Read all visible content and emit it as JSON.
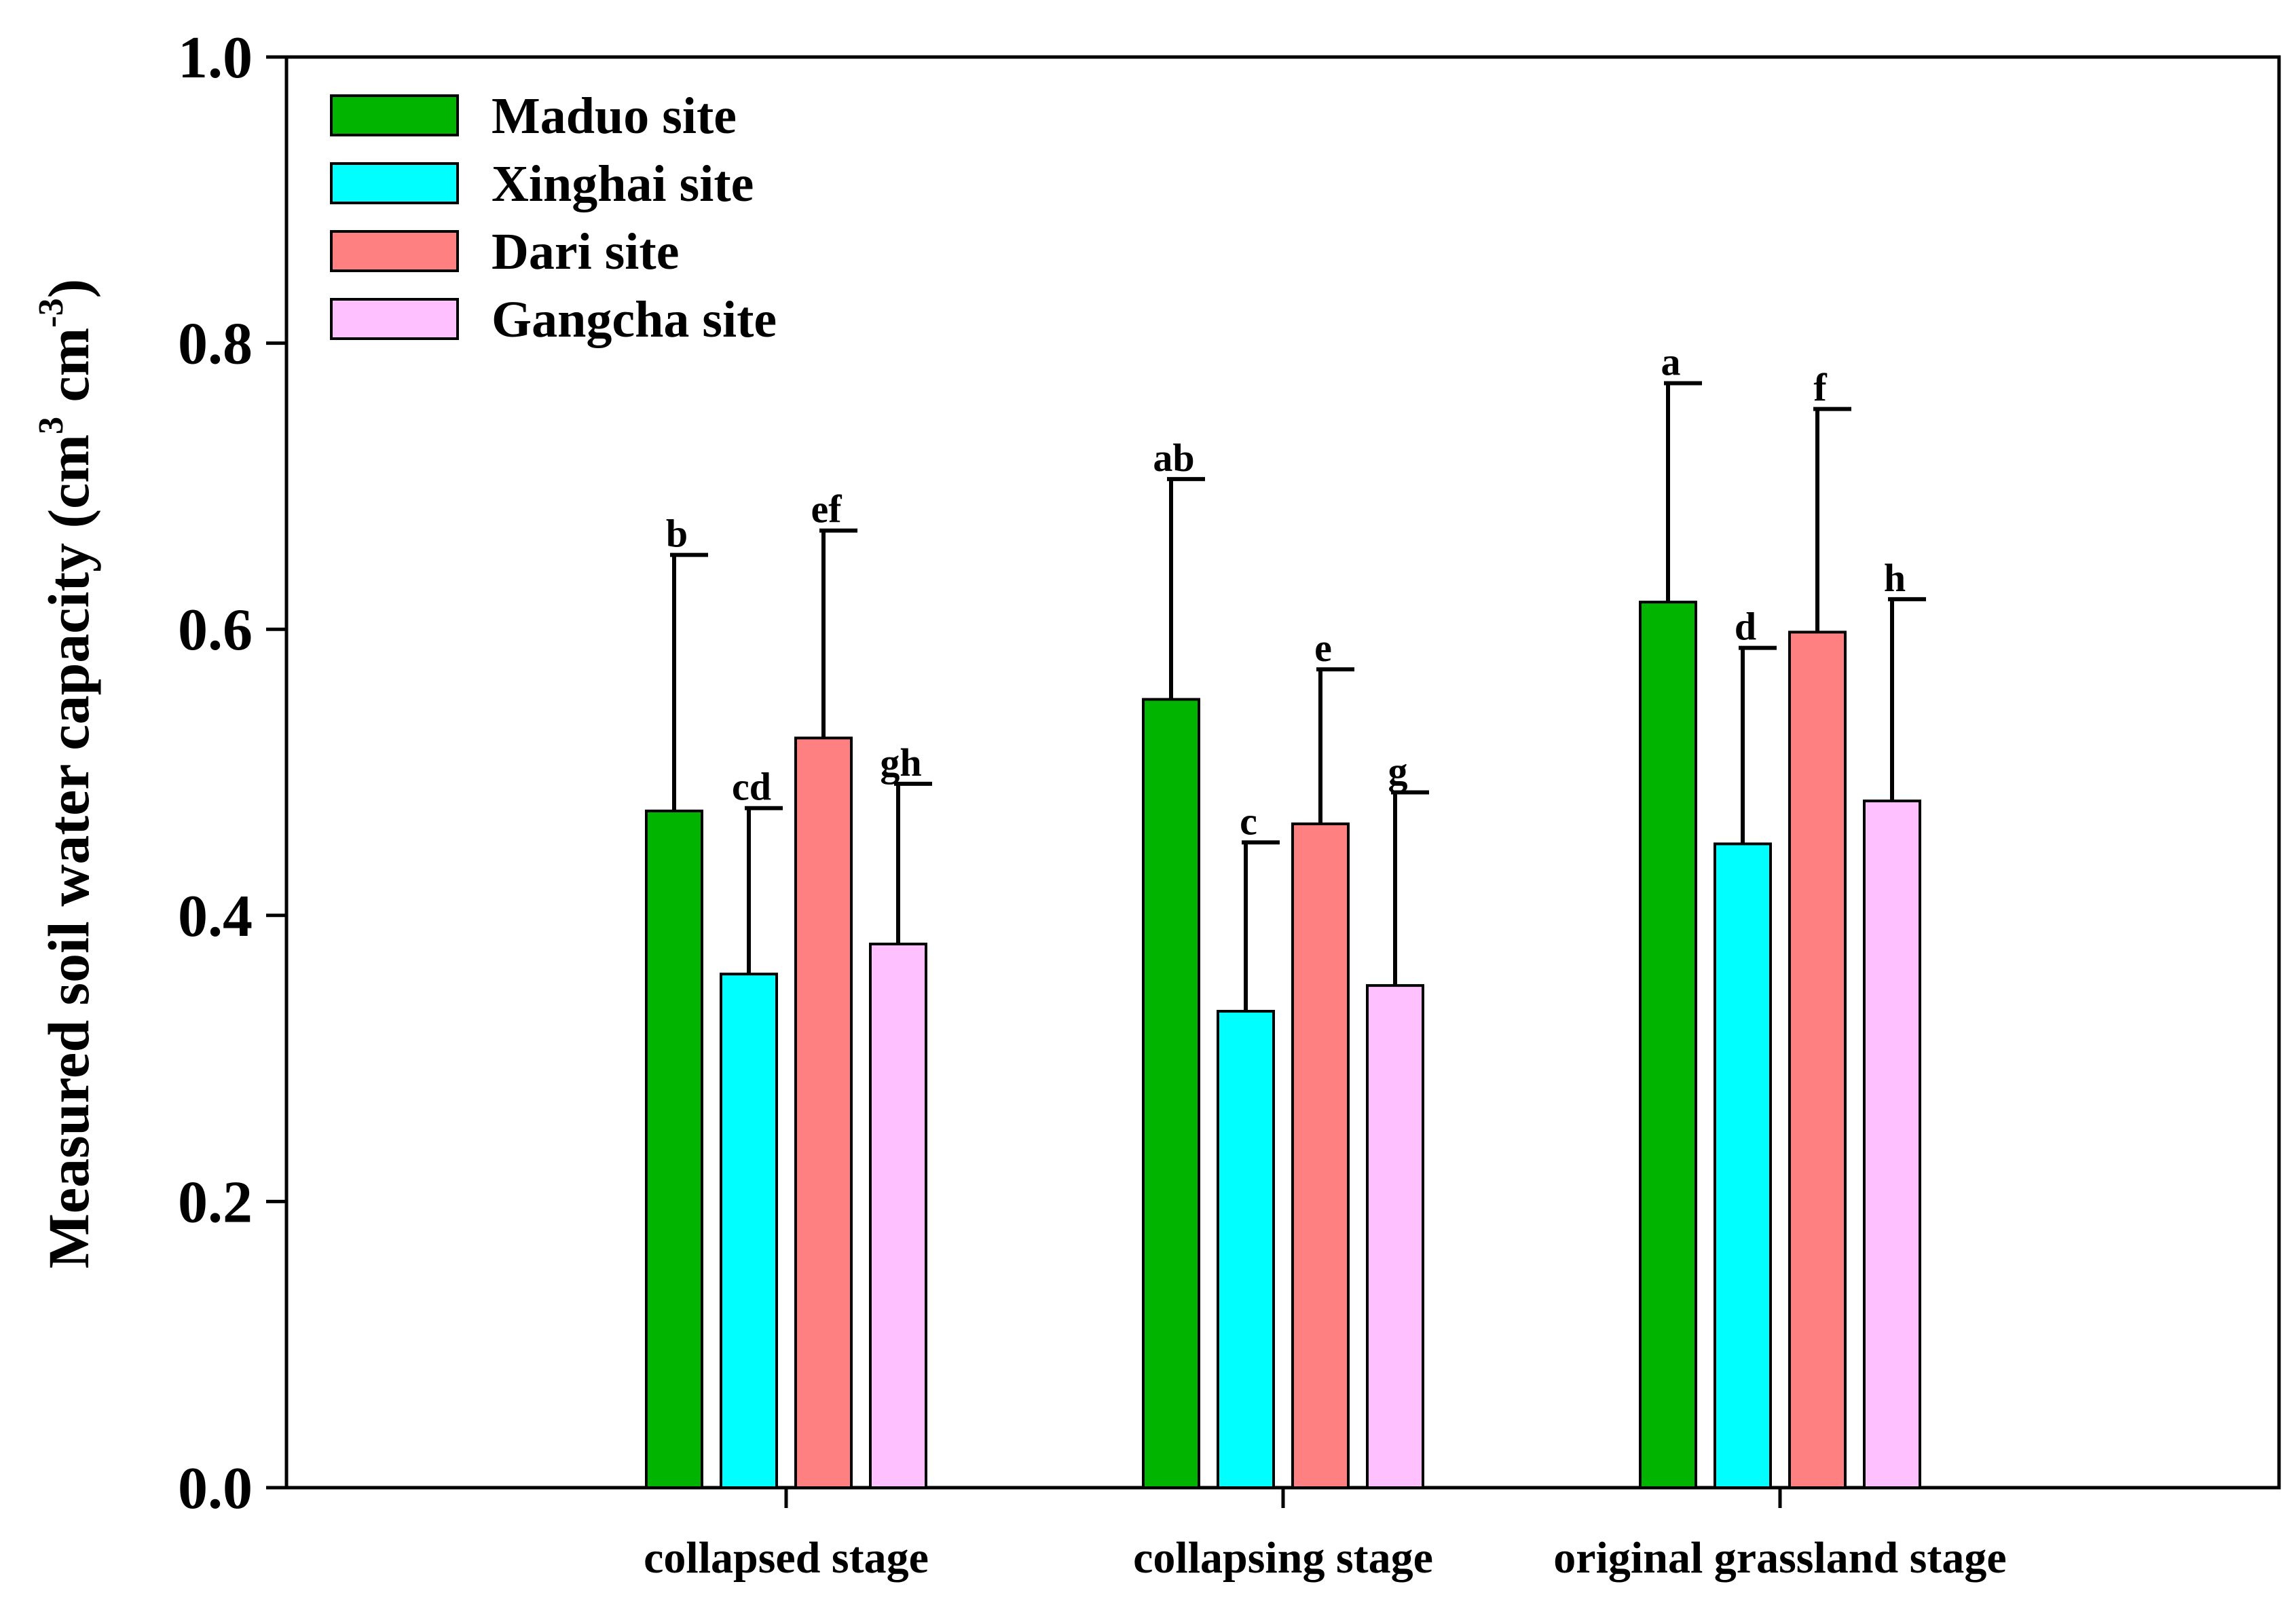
{
  "chart_data": {
    "type": "bar",
    "title": "",
    "xlabel": "",
    "ylabel": {
      "prefix": "Measured soil water capacity (cm",
      "sup1": "3",
      "middle": " cm",
      "sup2": "-3",
      "suffix": ")"
    },
    "ylim": [
      0,
      1.0
    ],
    "yticks": [
      "0.0",
      "0.2",
      "0.4",
      "0.6",
      "0.8",
      "1.0"
    ],
    "grid": false,
    "legend_position": "top-left",
    "categories": [
      "collapsed stage",
      "collapsing stage",
      "original grassland stage"
    ],
    "series": [
      {
        "name": "Maduo site",
        "color": "#00b400",
        "values": [
          0.473,
          0.551,
          0.619
        ],
        "errors": [
          0.179,
          0.154,
          0.153
        ],
        "labels": [
          "b",
          "ab",
          "a"
        ]
      },
      {
        "name": "Xinghai site",
        "color": "#00ffff",
        "values": [
          0.359,
          0.333,
          0.45
        ],
        "errors": [
          0.116,
          0.118,
          0.137
        ],
        "labels": [
          "cd",
          "c",
          "d"
        ]
      },
      {
        "name": "Dari site",
        "color": "#ff8080",
        "values": [
          0.524,
          0.464,
          0.598
        ],
        "errors": [
          0.145,
          0.108,
          0.156
        ],
        "labels": [
          "ef",
          "e",
          "f"
        ]
      },
      {
        "name": "Gangcha site",
        "color": "#ffc0ff",
        "values": [
          0.38,
          0.351,
          0.48
        ],
        "errors": [
          0.112,
          0.135,
          0.141
        ],
        "labels": [
          "gh",
          "g",
          "h"
        ]
      }
    ]
  }
}
